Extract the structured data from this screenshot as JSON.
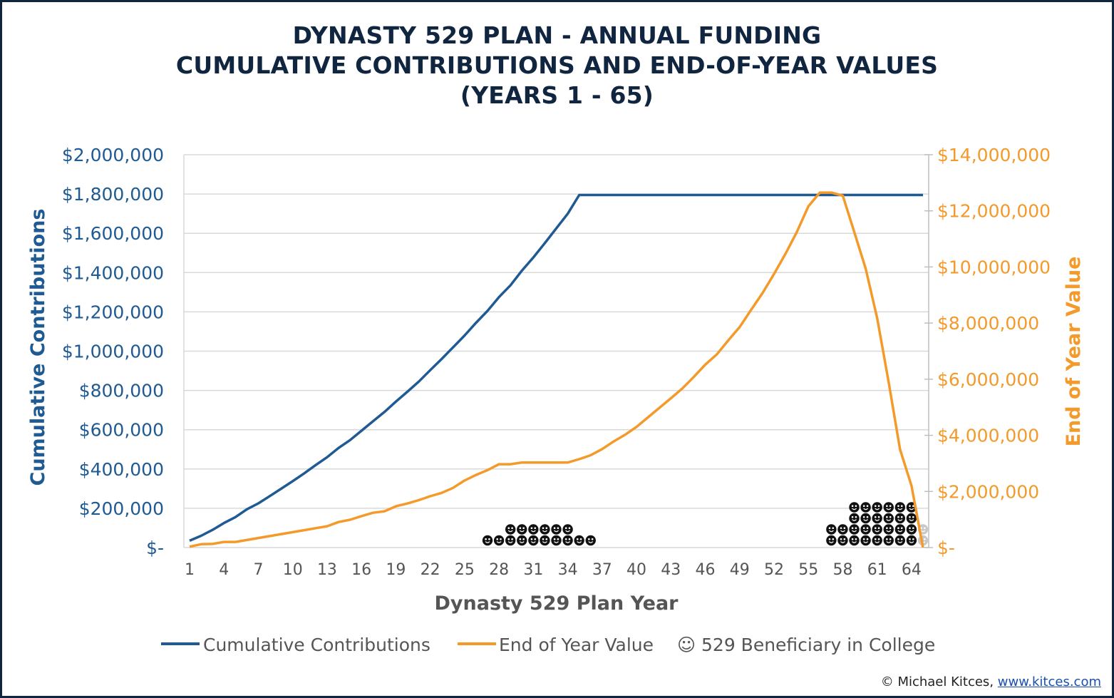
{
  "title_lines": [
    "DYNASTY 529 PLAN - ANNUAL FUNDING",
    "CUMULATIVE CONTRIBUTIONS AND END-OF-YEAR VALUES",
    "(YEARS 1 - 65)"
  ],
  "credit": {
    "text": "© Michael Kitces, ",
    "link": "www.kitces.com"
  },
  "colors": {
    "contributions": "#1f5a93",
    "value": "#f39a2b",
    "marker": "#111111",
    "marker_faded": "#c8c8c8",
    "title": "#10253f"
  },
  "chart_data": {
    "type": "line",
    "xlabel": "Dynasty 529 Plan Year",
    "ylabel_left": "Cumulative Contributions",
    "ylabel_right": "End of Year Value",
    "x_ticks": [
      "1",
      "4",
      "7",
      "10",
      "13",
      "16",
      "19",
      "22",
      "25",
      "28",
      "31",
      "34",
      "37",
      "40",
      "43",
      "46",
      "49",
      "52",
      "55",
      "58",
      "61",
      "64"
    ],
    "y_left_ticks": [
      "$-",
      "$200,000",
      "$400,000",
      "$600,000",
      "$800,000",
      "$1,000,000",
      "$1,200,000",
      "$1,400,000",
      "$1,600,000",
      "$1,800,000",
      "$2,000,000"
    ],
    "y_right_ticks": [
      "$-",
      "$2,000,000",
      "$4,000,000",
      "$6,000,000",
      "$8,000,000",
      "$10,000,000",
      "$12,000,000",
      "$14,000,000"
    ],
    "ylim_left": [
      0,
      2000000
    ],
    "ylim_right": [
      0,
      14000000
    ],
    "xlim": [
      1,
      65
    ],
    "grid": true,
    "legend_position": "bottom",
    "series": [
      {
        "name": "Cumulative Contributions",
        "axis": "left",
        "x": [
          1,
          2,
          3,
          4,
          5,
          6,
          7,
          8,
          9,
          10,
          11,
          12,
          13,
          14,
          15,
          16,
          17,
          18,
          19,
          20,
          21,
          22,
          23,
          24,
          25,
          26,
          27,
          28,
          29,
          30,
          31,
          32,
          33,
          34,
          35,
          36,
          40,
          45,
          50,
          55,
          60,
          65
        ],
        "values": [
          35000,
          60000,
          90000,
          125000,
          155000,
          195000,
          225000,
          262000,
          300000,
          338000,
          378000,
          420000,
          460000,
          507000,
          547000,
          595000,
          643000,
          690000,
          743000,
          793000,
          845000,
          903000,
          960000,
          1020000,
          1080000,
          1145000,
          1205000,
          1275000,
          1335000,
          1410000,
          1477000,
          1550000,
          1625000,
          1700000,
          1795000,
          1795000,
          1795000,
          1795000,
          1795000,
          1795000,
          1795000,
          1795000
        ]
      },
      {
        "name": "End of Year Value",
        "axis": "right",
        "x": [
          1,
          2,
          3,
          4,
          5,
          6,
          7,
          8,
          9,
          10,
          11,
          12,
          13,
          14,
          15,
          16,
          17,
          18,
          19,
          20,
          21,
          22,
          23,
          24,
          25,
          26,
          27,
          28,
          29,
          30,
          31,
          32,
          33,
          34,
          35,
          36,
          37,
          38,
          39,
          40,
          41,
          42,
          43,
          44,
          45,
          46,
          47,
          48,
          49,
          50,
          51,
          52,
          53,
          54,
          55,
          56,
          57,
          58,
          59,
          60,
          61,
          62,
          63,
          64,
          65
        ],
        "values": [
          30000,
          120000,
          130000,
          200000,
          200000,
          270000,
          340000,
          410000,
          480000,
          550000,
          620000,
          690000,
          760000,
          910000,
          990000,
          1120000,
          1240000,
          1290000,
          1470000,
          1570000,
          1690000,
          1830000,
          1950000,
          2130000,
          2390000,
          2590000,
          2760000,
          2970000,
          2970000,
          3030000,
          3030000,
          3030000,
          3030000,
          3030000,
          3150000,
          3290000,
          3510000,
          3780000,
          4020000,
          4300000,
          4640000,
          4980000,
          5320000,
          5670000,
          6080000,
          6520000,
          6880000,
          7380000,
          7860000,
          8470000,
          9070000,
          9750000,
          10470000,
          11250000,
          12160000,
          12650000,
          12650000,
          12540000,
          11250000,
          9940000,
          8180000,
          5900000,
          3500000,
          2200000,
          0
        ]
      }
    ],
    "markers": {
      "name": "529 Beneficiary in College",
      "symbol": "☺",
      "years_by_count": {
        "27": 1,
        "28": 1,
        "29": 2,
        "30": 2,
        "31": 2,
        "32": 2,
        "33": 2,
        "34": 2,
        "35": 1,
        "36": 1,
        "57": 2,
        "58": 2,
        "59": 4,
        "60": 4,
        "61": 4,
        "62": 4,
        "63": 4,
        "64": 4,
        "65": 2
      },
      "faded_years": [
        "65"
      ]
    },
    "legend": [
      "Cumulative Contributions",
      "End of Year Value",
      "☺ 529 Beneficiary in College"
    ]
  }
}
